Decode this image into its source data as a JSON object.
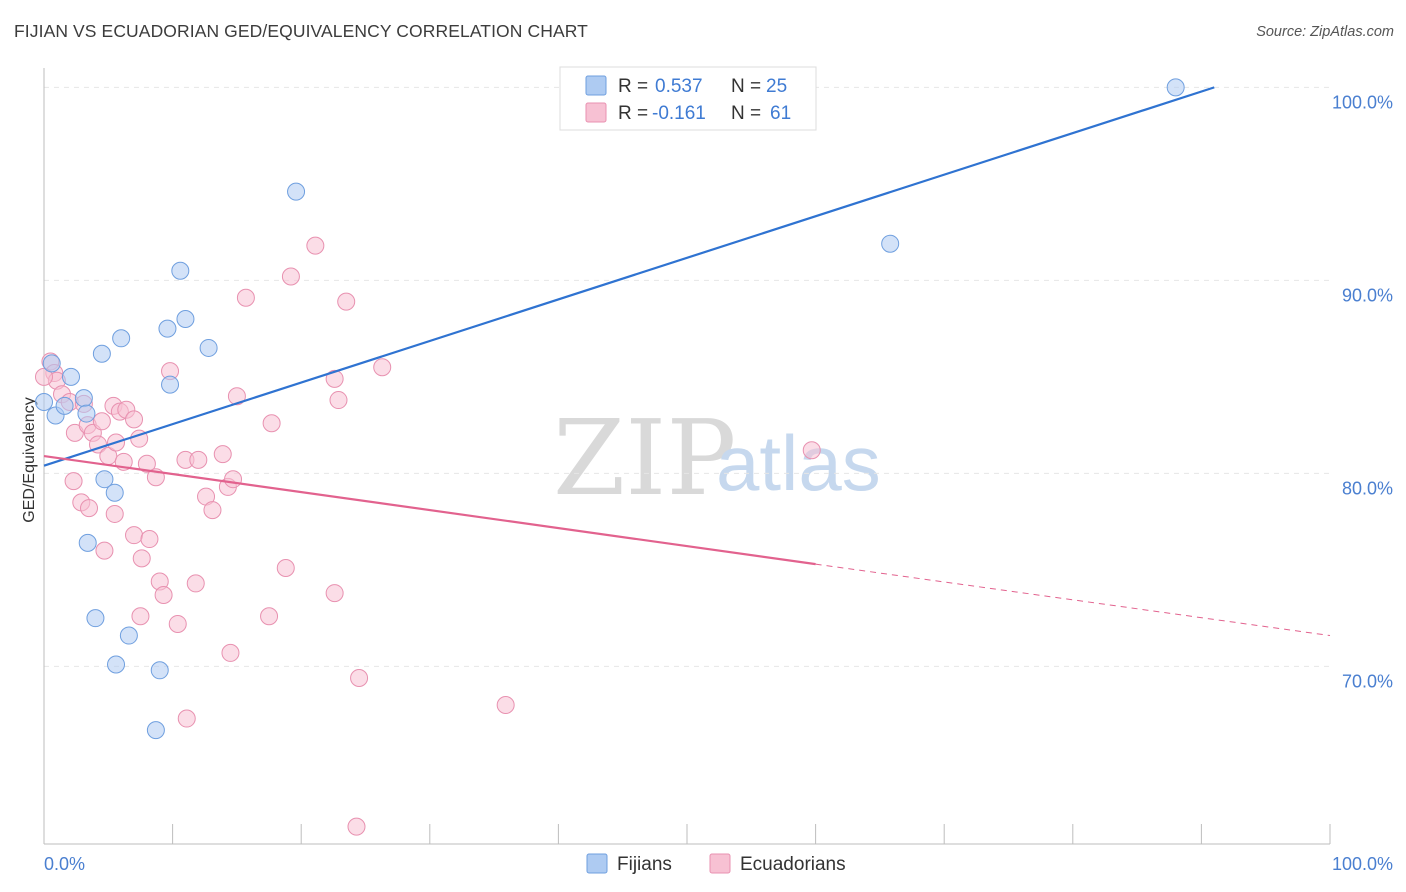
{
  "header": {
    "title": "FIJIAN VS ECUADORIAN GED/EQUIVALENCY CORRELATION CHART",
    "source": "Source: ZipAtlas.com"
  },
  "watermark": {
    "zip": "ZIP",
    "atlas": "atlas"
  },
  "colors": {
    "fijian_fill": "#aecbf2",
    "fijian_stroke": "#6f9fdf",
    "fijian_line": "#2f73d1",
    "ecuadorian_fill": "#f7c1d3",
    "ecuadorian_stroke": "#e891b0",
    "ecuadorian_line": "#e2628e",
    "tick_label": "#4a7fd0",
    "grid": "#e6e6e6"
  },
  "chart_data": {
    "type": "scatter",
    "title": "FIJIAN VS ECUADORIAN GED/EQUIVALENCY CORRELATION CHART",
    "xlabel": "",
    "ylabel": "GED/Equivalency",
    "xlim": [
      0,
      100
    ],
    "ylim": [
      60.8,
      100.9
    ],
    "x_tick_labels": [
      "0.0%",
      "100.0%"
    ],
    "y_ticks": [
      70,
      80,
      90,
      100
    ],
    "y_tick_labels": [
      "70.0%",
      "80.0%",
      "90.0%",
      "100.0%"
    ],
    "grid": true,
    "legend_stats": [
      {
        "series": "Fijians",
        "r_label": "R = ",
        "r_value": "0.537",
        "n_label": "N = ",
        "n_value": "25"
      },
      {
        "series": "Ecuadorians",
        "r_label": "R = ",
        "r_value": "-0.161",
        "n_label": "N = ",
        "n_value": "61"
      }
    ],
    "series": [
      {
        "name": "Fijians",
        "points": [
          [
            0.0,
            83.7
          ],
          [
            0.6,
            85.7
          ],
          [
            0.9,
            83.0
          ],
          [
            1.6,
            83.5
          ],
          [
            2.1,
            85.0
          ],
          [
            3.1,
            83.9
          ],
          [
            4.5,
            86.2
          ],
          [
            6.0,
            87.0
          ],
          [
            9.6,
            87.5
          ],
          [
            10.6,
            90.5
          ],
          [
            11.0,
            88.0
          ],
          [
            12.8,
            86.5
          ],
          [
            9.8,
            84.6
          ],
          [
            3.3,
            83.1
          ],
          [
            4.7,
            79.7
          ],
          [
            5.5,
            79.0
          ],
          [
            3.4,
            76.4
          ],
          [
            4.0,
            72.5
          ],
          [
            6.6,
            71.6
          ],
          [
            5.6,
            70.1
          ],
          [
            9.0,
            69.8
          ],
          [
            8.7,
            66.7
          ],
          [
            19.6,
            94.6
          ],
          [
            65.8,
            91.9
          ],
          [
            88.0,
            100.0
          ]
        ],
        "trend": {
          "x_start": 0.0,
          "y_start": 80.4,
          "x_end": 91.0,
          "y_end": 100.0
        }
      },
      {
        "name": "Ecuadorians",
        "points": [
          [
            0.5,
            85.8
          ],
          [
            0.8,
            85.2
          ],
          [
            1.0,
            84.8
          ],
          [
            1.4,
            84.1
          ],
          [
            2.0,
            83.7
          ],
          [
            2.4,
            82.1
          ],
          [
            3.1,
            83.6
          ],
          [
            3.4,
            82.5
          ],
          [
            3.8,
            82.1
          ],
          [
            4.2,
            81.5
          ],
          [
            4.5,
            82.7
          ],
          [
            5.0,
            80.9
          ],
          [
            5.4,
            83.5
          ],
          [
            5.9,
            83.2
          ],
          [
            6.4,
            83.3
          ],
          [
            7.0,
            82.8
          ],
          [
            7.4,
            81.8
          ],
          [
            8.0,
            80.5
          ],
          [
            2.3,
            79.6
          ],
          [
            2.9,
            78.5
          ],
          [
            3.5,
            78.2
          ],
          [
            4.7,
            76.0
          ],
          [
            5.5,
            77.9
          ],
          [
            6.2,
            80.6
          ],
          [
            7.0,
            76.8
          ],
          [
            7.6,
            75.6
          ],
          [
            8.2,
            76.6
          ],
          [
            8.7,
            79.8
          ],
          [
            9.0,
            74.4
          ],
          [
            9.3,
            73.7
          ],
          [
            7.5,
            72.6
          ],
          [
            9.8,
            85.3
          ],
          [
            10.4,
            72.2
          ],
          [
            11.0,
            80.7
          ],
          [
            11.8,
            74.3
          ],
          [
            12.0,
            80.7
          ],
          [
            12.6,
            78.8
          ],
          [
            13.1,
            78.1
          ],
          [
            13.9,
            81.0
          ],
          [
            14.3,
            79.3
          ],
          [
            14.7,
            79.7
          ],
          [
            14.5,
            70.7
          ],
          [
            15.7,
            89.1
          ],
          [
            17.7,
            82.6
          ],
          [
            18.8,
            75.1
          ],
          [
            19.2,
            90.2
          ],
          [
            17.5,
            72.6
          ],
          [
            21.1,
            91.8
          ],
          [
            22.6,
            84.9
          ],
          [
            22.6,
            73.8
          ],
          [
            22.9,
            83.8
          ],
          [
            23.5,
            88.9
          ],
          [
            24.5,
            69.4
          ],
          [
            26.3,
            85.5
          ],
          [
            15.0,
            84.0
          ],
          [
            11.1,
            67.3
          ],
          [
            24.3,
            61.7
          ],
          [
            35.9,
            68.0
          ],
          [
            59.7,
            81.2
          ],
          [
            0.0,
            85.0
          ],
          [
            5.6,
            81.6
          ]
        ],
        "trend": {
          "x_start": 0.0,
          "y_start": 80.9,
          "x_end": 60.0,
          "y_end": 75.3
        },
        "trend_dashed": {
          "x_start": 60.0,
          "y_start": 75.3,
          "x_end": 100.0,
          "y_end": 71.6
        }
      }
    ],
    "legend": [
      {
        "label": "Fijians"
      },
      {
        "label": "Ecuadorians"
      }
    ]
  }
}
